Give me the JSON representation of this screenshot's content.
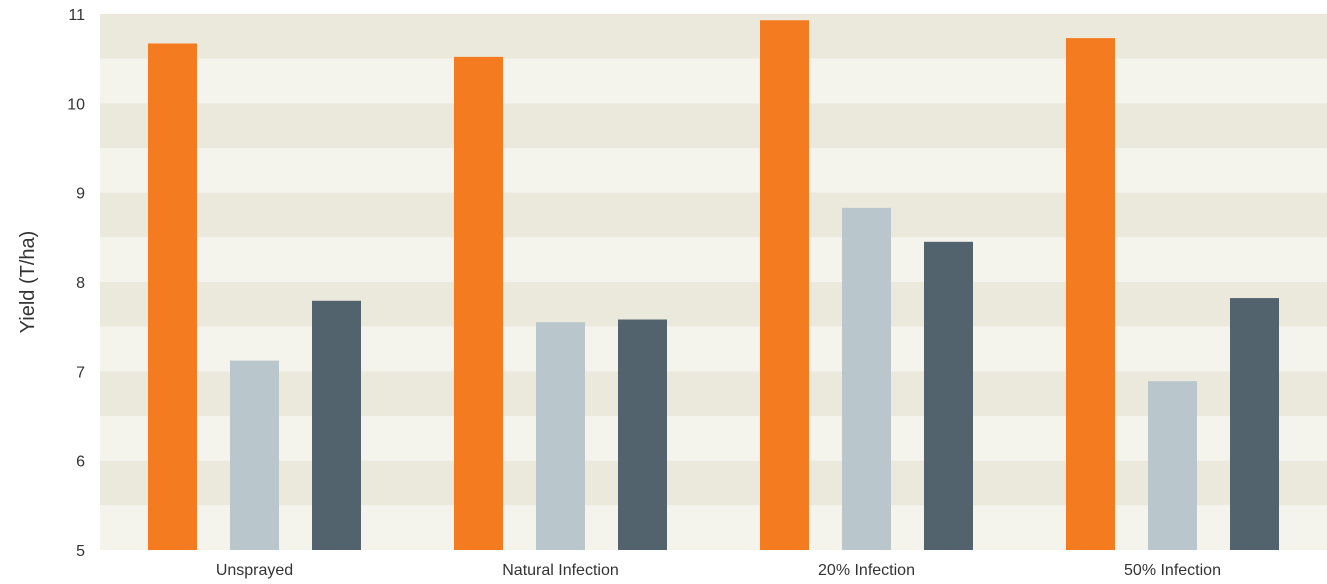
{
  "chart_data": {
    "type": "bar",
    "title": "",
    "xlabel": "",
    "ylabel": "Yield (T/ha)",
    "ylim": [
      5,
      11
    ],
    "yticks": [
      "5",
      "6",
      "7",
      "8",
      "9",
      "10",
      "11"
    ],
    "categories": [
      "Unsprayed",
      "Natural Infection",
      "20% Infection",
      "50% Infection"
    ],
    "series": [
      {
        "color": "#F47B20",
        "values": [
          10.67,
          10.52,
          10.93,
          10.73
        ]
      },
      {
        "color": "#B9C6CC",
        "values": [
          7.12,
          7.55,
          8.83,
          6.89
        ]
      },
      {
        "color": "#52636D",
        "values": [
          7.79,
          7.58,
          8.45,
          7.82
        ]
      }
    ],
    "legend": "none",
    "grid": "alternating horizontal bands",
    "band_colors": [
      "#EBE8DC",
      "#F4F3EC"
    ]
  }
}
